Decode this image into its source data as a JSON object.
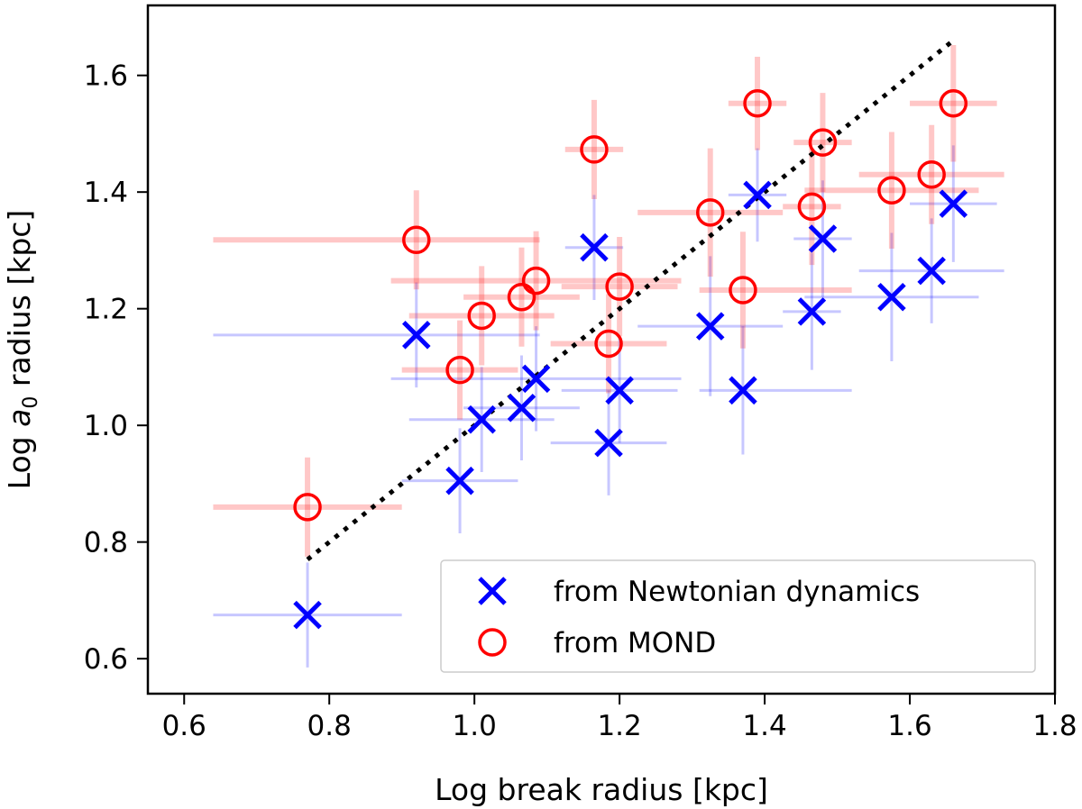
{
  "chart_data": {
    "type": "scatter",
    "title": "",
    "xlabel": "Log break radius [kpc]",
    "ylabel_prefix": "Log ",
    "ylabel_symbol": "a",
    "ylabel_subscript": "0",
    "ylabel_suffix": " radius [kpc]",
    "xlim": [
      0.55,
      1.8
    ],
    "ylim": [
      0.54,
      1.72
    ],
    "xticks": [
      0.6,
      0.8,
      1.0,
      1.2,
      1.4,
      1.6,
      1.8
    ],
    "xtick_labels": [
      "0.6",
      "0.8",
      "1.0",
      "1.2",
      "1.4",
      "1.6",
      "1.8"
    ],
    "yticks": [
      0.6,
      0.8,
      1.0,
      1.2,
      1.4,
      1.6
    ],
    "ytick_labels": [
      "0.6",
      "0.8",
      "1.0",
      "1.2",
      "1.4",
      "1.6"
    ],
    "legend_position": "lower-right",
    "fit_line": {
      "style": "dotted",
      "color": "#000000",
      "x": [
        0.77,
        1.66
      ],
      "y": [
        0.77,
        1.66
      ]
    },
    "series": [
      {
        "name": "from Newtonian dynamics",
        "marker": "x",
        "color": "#0000ff",
        "errcolor": "#0000ff",
        "points": [
          {
            "x": 0.77,
            "y": 0.675,
            "xerr": [
              0.13,
              0.13
            ],
            "yerr": [
              0.09,
              0.09
            ]
          },
          {
            "x": 0.92,
            "y": 1.155,
            "xerr": [
              0.28,
              0.17
            ],
            "yerr": [
              0.09,
              0.09
            ]
          },
          {
            "x": 0.98,
            "y": 0.905,
            "xerr": [
              0.08,
              0.08
            ],
            "yerr": [
              0.09,
              0.09
            ]
          },
          {
            "x": 1.01,
            "y": 1.01,
            "xerr": [
              0.1,
              0.1
            ],
            "yerr": [
              0.09,
              0.09
            ]
          },
          {
            "x": 1.065,
            "y": 1.03,
            "xerr": [
              0.08,
              0.08
            ],
            "yerr": [
              0.09,
              0.09
            ]
          },
          {
            "x": 1.085,
            "y": 1.08,
            "xerr": [
              0.2,
              0.2
            ],
            "yerr": [
              0.09,
              0.09
            ]
          },
          {
            "x": 1.165,
            "y": 1.305,
            "xerr": [
              0.04,
              0.04
            ],
            "yerr": [
              0.09,
              0.09
            ]
          },
          {
            "x": 1.185,
            "y": 0.97,
            "xerr": [
              0.08,
              0.08
            ],
            "yerr": [
              0.09,
              0.09
            ]
          },
          {
            "x": 1.2,
            "y": 1.06,
            "xerr": [
              0.08,
              0.08
            ],
            "yerr": [
              0.09,
              0.09
            ]
          },
          {
            "x": 1.325,
            "y": 1.17,
            "xerr": [
              0.1,
              0.1
            ],
            "yerr": [
              0.12,
              0.12
            ]
          },
          {
            "x": 1.37,
            "y": 1.06,
            "xerr": [
              0.06,
              0.15
            ],
            "yerr": [
              0.11,
              0.11
            ]
          },
          {
            "x": 1.39,
            "y": 1.395,
            "xerr": [
              0.04,
              0.04
            ],
            "yerr": [
              0.08,
              0.08
            ]
          },
          {
            "x": 1.465,
            "y": 1.195,
            "xerr": [
              0.04,
              0.04
            ],
            "yerr": [
              0.1,
              0.1
            ]
          },
          {
            "x": 1.48,
            "y": 1.32,
            "xerr": [
              0.04,
              0.04
            ],
            "yerr": [
              0.1,
              0.1
            ]
          },
          {
            "x": 1.575,
            "y": 1.22,
            "xerr": [
              0.12,
              0.12
            ],
            "yerr": [
              0.11,
              0.11
            ]
          },
          {
            "x": 1.63,
            "y": 1.265,
            "xerr": [
              0.1,
              0.1
            ],
            "yerr": [
              0.09,
              0.09
            ]
          },
          {
            "x": 1.66,
            "y": 1.38,
            "xerr": [
              0.06,
              0.06
            ],
            "yerr": [
              0.1,
              0.1
            ]
          }
        ]
      },
      {
        "name": "from MOND",
        "marker": "o",
        "color": "#ff0000",
        "errcolor": "#ff0000",
        "points": [
          {
            "x": 0.77,
            "y": 0.86,
            "xerr": [
              0.13,
              0.13
            ],
            "yerr": [
              0.085,
              0.085
            ]
          },
          {
            "x": 0.92,
            "y": 1.318,
            "xerr": [
              0.28,
              0.17
            ],
            "yerr": [
              0.085,
              0.085
            ]
          },
          {
            "x": 0.98,
            "y": 1.095,
            "xerr": [
              0.08,
              0.08
            ],
            "yerr": [
              0.085,
              0.085
            ]
          },
          {
            "x": 1.01,
            "y": 1.188,
            "xerr": [
              0.1,
              0.1
            ],
            "yerr": [
              0.085,
              0.085
            ]
          },
          {
            "x": 1.065,
            "y": 1.22,
            "xerr": [
              0.08,
              0.08
            ],
            "yerr": [
              0.085,
              0.085
            ]
          },
          {
            "x": 1.085,
            "y": 1.248,
            "xerr": [
              0.2,
              0.2
            ],
            "yerr": [
              0.085,
              0.085
            ]
          },
          {
            "x": 1.165,
            "y": 1.473,
            "xerr": [
              0.04,
              0.04
            ],
            "yerr": [
              0.085,
              0.085
            ]
          },
          {
            "x": 1.185,
            "y": 1.14,
            "xerr": [
              0.08,
              0.08
            ],
            "yerr": [
              0.085,
              0.085
            ]
          },
          {
            "x": 1.2,
            "y": 1.238,
            "xerr": [
              0.08,
              0.08
            ],
            "yerr": [
              0.085,
              0.085
            ]
          },
          {
            "x": 1.325,
            "y": 1.365,
            "xerr": [
              0.1,
              0.1
            ],
            "yerr": [
              0.11,
              0.11
            ]
          },
          {
            "x": 1.37,
            "y": 1.232,
            "xerr": [
              0.06,
              0.15
            ],
            "yerr": [
              0.1,
              0.1
            ]
          },
          {
            "x": 1.39,
            "y": 1.552,
            "xerr": [
              0.04,
              0.04
            ],
            "yerr": [
              0.08,
              0.08
            ]
          },
          {
            "x": 1.465,
            "y": 1.375,
            "xerr": [
              0.04,
              0.04
            ],
            "yerr": [
              0.1,
              0.1
            ]
          },
          {
            "x": 1.48,
            "y": 1.485,
            "xerr": [
              0.04,
              0.04
            ],
            "yerr": [
              0.085,
              0.085
            ]
          },
          {
            "x": 1.575,
            "y": 1.403,
            "xerr": [
              0.12,
              0.12
            ],
            "yerr": [
              0.1,
              0.1
            ]
          },
          {
            "x": 1.63,
            "y": 1.43,
            "xerr": [
              0.1,
              0.1
            ],
            "yerr": [
              0.085,
              0.085
            ]
          },
          {
            "x": 1.66,
            "y": 1.552,
            "xerr": [
              0.06,
              0.06
            ],
            "yerr": [
              0.1,
              0.1
            ]
          }
        ]
      }
    ]
  }
}
